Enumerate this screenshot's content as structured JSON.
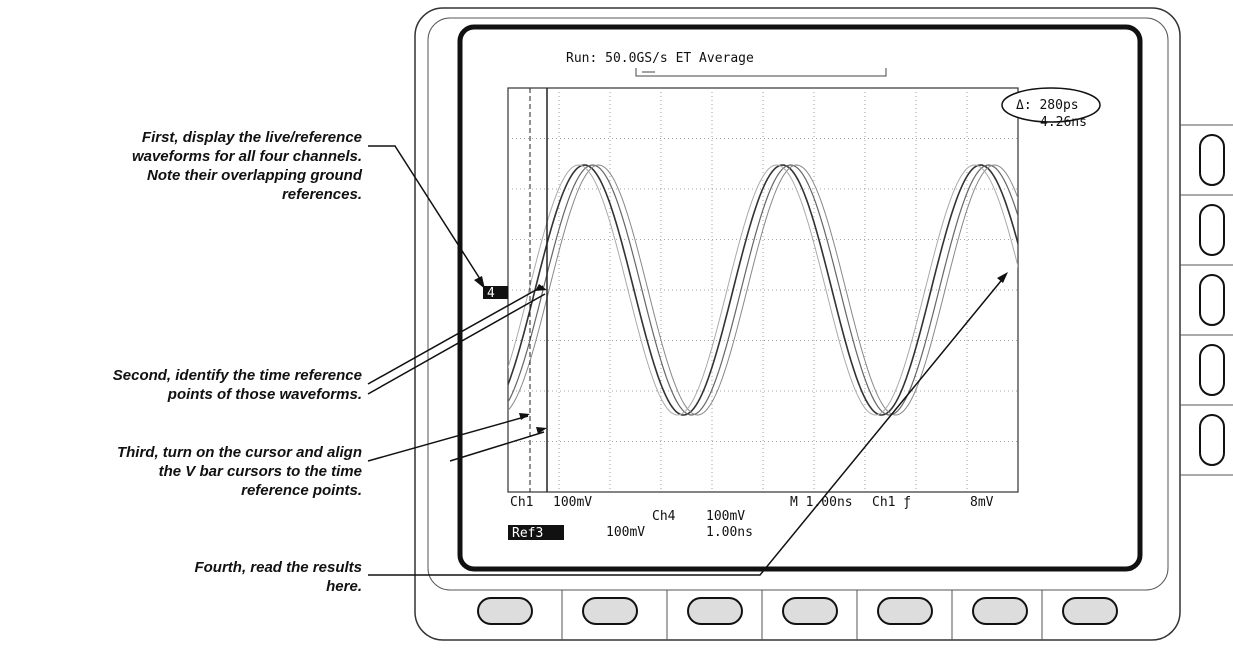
{
  "callouts": [
    {
      "lines": [
        "First, display the live/reference",
        "waveforms for all four channels.",
        "Note their overlapping ground",
        "references."
      ]
    },
    {
      "lines": [
        "Second, identify the time reference",
        "points of those waveforms."
      ]
    },
    {
      "lines": [
        "Third, turn on the cursor and align",
        "the V bar cursors to the time",
        "reference points."
      ]
    },
    {
      "lines": [
        "Fourth, read the results",
        "here."
      ]
    }
  ],
  "screen": {
    "status": "Run: 50.0GS/s ET Average",
    "delta": "Δ: 280ps",
    "at": "4.26ns",
    "ground_marker": "4",
    "readout": {
      "ch1": "Ch1",
      "ch1_scale": "100mV",
      "ch4": "Ch4",
      "ch4_scale": "100mV",
      "time": "M 1.00ns",
      "trigger": "Ch1 ƒ",
      "trigger_level": "8mV",
      "ref": "Ref3",
      "ref_scale": "100mV",
      "ref_time": "1.00ns"
    }
  }
}
